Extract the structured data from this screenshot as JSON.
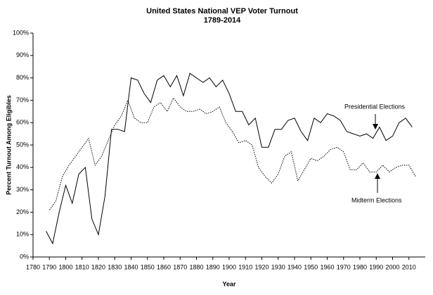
{
  "chart_data": {
    "type": "line",
    "title": "United States National VEP Voter Turnout",
    "subtitle": "1789-2014",
    "x_label": "Year",
    "y_label": "Percent Turnout Among Eligibles",
    "xlim": [
      1780,
      2020
    ],
    "xticks": [
      1780,
      1790,
      1800,
      1810,
      1820,
      1830,
      1840,
      1850,
      1860,
      1870,
      1880,
      1890,
      1900,
      1910,
      1920,
      1930,
      1940,
      1950,
      1960,
      1970,
      1980,
      1990,
      2000,
      2010
    ],
    "ylim": [
      0,
      100
    ],
    "yticks": [
      {
        "value": 0,
        "label": "0%"
      },
      {
        "value": 10,
        "label": "10%"
      },
      {
        "value": 20,
        "label": "20%"
      },
      {
        "value": 30,
        "label": "30%"
      },
      {
        "value": 40,
        "label": "40%"
      },
      {
        "value": 50,
        "label": "50%"
      },
      {
        "value": 60,
        "label": "60%"
      },
      {
        "value": 70,
        "label": "70%"
      },
      {
        "value": 80,
        "label": "80%"
      },
      {
        "value": 90,
        "label": "90%"
      },
      {
        "value": 100,
        "label": "100%"
      }
    ],
    "grid": false,
    "series": [
      {
        "color": "#000000",
        "style": "solid",
        "x": [
          1788,
          1792,
          1796,
          1800,
          1804,
          1808,
          1812,
          1816,
          1820,
          1824,
          1828,
          1832,
          1836,
          1840,
          1844,
          1848,
          1852,
          1856,
          1860,
          1864,
          1868,
          1872,
          1876,
          1880,
          1884,
          1888,
          1892,
          1896,
          1900,
          1904,
          1908,
          1912,
          1916,
          1920,
          1924,
          1928,
          1932,
          1936,
          1940,
          1944,
          1948,
          1952,
          1956,
          1960,
          1964,
          1968,
          1972,
          1976,
          1980,
          1984,
          1988,
          1992,
          1996,
          2000,
          2004,
          2008,
          2012
        ],
        "values": [
          11.5,
          6,
          20,
          32,
          24,
          37,
          40,
          17,
          10,
          27,
          57,
          57,
          56,
          80,
          79,
          73,
          69,
          79,
          81,
          76,
          81,
          72,
          82,
          80,
          78,
          80,
          76,
          79,
          73,
          65,
          65,
          59,
          62,
          49,
          49,
          57,
          57,
          61,
          62,
          56,
          52,
          62,
          60,
          64,
          63,
          61,
          56,
          55,
          54,
          55,
          53,
          58,
          52,
          54,
          60,
          62,
          58
        ]
      },
      {
        "color": "#000000",
        "style": "dotted",
        "x": [
          1790,
          1794,
          1798,
          1802,
          1806,
          1810,
          1814,
          1818,
          1822,
          1826,
          1830,
          1834,
          1838,
          1842,
          1846,
          1850,
          1854,
          1858,
          1862,
          1866,
          1870,
          1874,
          1878,
          1882,
          1886,
          1890,
          1894,
          1898,
          1902,
          1906,
          1910,
          1914,
          1918,
          1922,
          1926,
          1930,
          1934,
          1938,
          1942,
          1946,
          1950,
          1954,
          1958,
          1962,
          1966,
          1970,
          1974,
          1978,
          1982,
          1986,
          1990,
          1994,
          1998,
          2002,
          2006,
          2010,
          2014
        ],
        "values": [
          21,
          25,
          36,
          41,
          45,
          49,
          53,
          41,
          45,
          52,
          59,
          63,
          70,
          62,
          60,
          60,
          67,
          69,
          65,
          71,
          67,
          65,
          65,
          66,
          64,
          65,
          67,
          60,
          56,
          51,
          52,
          50,
          40,
          36,
          33,
          37,
          45,
          47,
          34,
          39,
          44,
          43,
          45,
          48,
          49,
          47,
          39,
          39,
          42,
          38,
          38,
          41,
          38,
          40,
          41,
          41,
          36
        ]
      }
    ],
    "annotations": [
      "Presidential Elections",
      "Midterm Elections"
    ]
  }
}
